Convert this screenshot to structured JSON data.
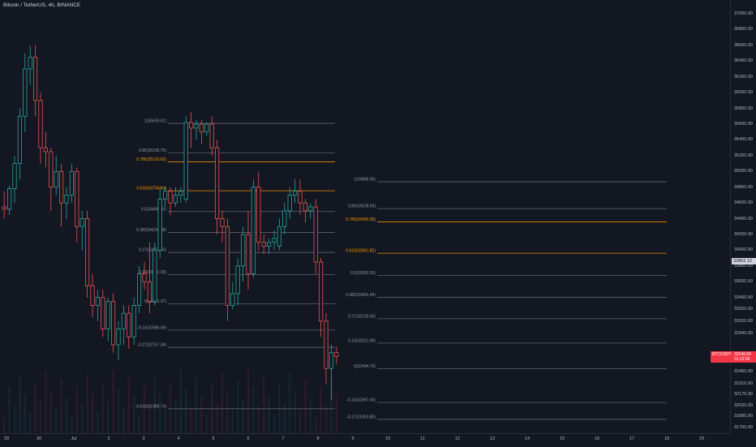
{
  "header": {
    "symbol_title": "Bitcoin / TetherUS, 4h, BINANCE"
  },
  "colors": {
    "background": "#131722",
    "bull": "#26a69a",
    "bear": "#ef5350",
    "fib_gray": "#787b86",
    "fib_orange": "#ff9800",
    "current_price_tag": "#f23645"
  },
  "price_axis": {
    "ticks": [
      {
        "label": "37000.00",
        "price": 37000
      },
      {
        "label": "36800.00",
        "price": 36800
      },
      {
        "label": "36600.00",
        "price": 36600
      },
      {
        "label": "36400.00",
        "price": 36400
      },
      {
        "label": "36200.00",
        "price": 36200
      },
      {
        "label": "36000.00",
        "price": 36000
      },
      {
        "label": "35800.00",
        "price": 35800
      },
      {
        "label": "35600.00",
        "price": 35600
      },
      {
        "label": "35400.00",
        "price": 35400
      },
      {
        "label": "35200.00",
        "price": 35200
      },
      {
        "label": "35000.00",
        "price": 35000
      },
      {
        "label": "34800.00",
        "price": 34800
      },
      {
        "label": "34600.00",
        "price": 34600
      },
      {
        "label": "34400.00",
        "price": 34400
      },
      {
        "label": "34200.00",
        "price": 34200
      },
      {
        "label": "34000.00",
        "price": 34000
      },
      {
        "label": "33800.00",
        "price": 33800
      },
      {
        "label": "33600.00",
        "price": 33600
      },
      {
        "label": "33400.00",
        "price": 33400
      },
      {
        "label": "33250.00",
        "price": 33250
      },
      {
        "label": "33100.00",
        "price": 33100
      },
      {
        "label": "32940.00",
        "price": 32940
      },
      {
        "label": "32460.00",
        "price": 32460
      },
      {
        "label": "32310.00",
        "price": 32310
      },
      {
        "label": "32170.00",
        "price": 32170
      },
      {
        "label": "32030.00",
        "price": 32030
      },
      {
        "label": "31890.00",
        "price": 31890
      },
      {
        "label": "31750.00",
        "price": 31750
      }
    ],
    "highlight_price": {
      "label": "33862.12",
      "price": 33862.12
    },
    "current_price": {
      "symbol": "BTCUSDT",
      "value": "32649.99",
      "countdown": "01:12:00",
      "price": 32649.99
    }
  },
  "time_axis": {
    "ticks": [
      "29",
      "30",
      "Jul",
      "2",
      "3",
      "4",
      "5",
      "6",
      "7",
      "8",
      "9",
      "10",
      "11",
      "12",
      "13",
      "14",
      "15",
      "16",
      "17",
      "18",
      "19"
    ]
  },
  "fib_left": {
    "levels": [
      {
        "label": "1(35609.61)",
        "price": 35609.61,
        "color": "gray"
      },
      {
        "label": "0.86(35236.75)",
        "price": 35236.75,
        "color": "gray"
      },
      {
        "label": "0.786(35120.62)",
        "price": 35120.62,
        "color": "orange"
      },
      {
        "label": "0.618(34754.60)",
        "price": 34754.6,
        "color": "orange"
      },
      {
        "label": "0.5(34490.45)",
        "price": 34490.45,
        "color": "gray"
      },
      {
        "label": "0.382(34226.38)",
        "price": 34226.38,
        "color": "gray"
      },
      {
        "label": "0.27(33971.40)",
        "price": 33971.4,
        "color": "gray"
      },
      {
        "label": "0.14(33691.35)",
        "price": 33691.35,
        "color": "gray"
      },
      {
        "label": "0(33321.37)",
        "price": 33321.37,
        "color": "gray"
      },
      {
        "label": "-0.14(32986.49)",
        "price": 32986.49,
        "color": "gray"
      },
      {
        "label": "-0.27(32767.34)",
        "price": 32767.34,
        "color": "gray"
      },
      {
        "label": "-0.618(31988.74)",
        "price": 31988.74,
        "color": "gray"
      }
    ]
  },
  "fib_right": {
    "levels": [
      {
        "label": "1(34868.35)",
        "price": 34868.35,
        "color": "gray"
      },
      {
        "label": "0.86(34528.04)",
        "price": 34528.04,
        "color": "gray"
      },
      {
        "label": "0.786(34360.39)",
        "price": 34360.39,
        "color": "orange"
      },
      {
        "label": "0.618(33961.82)",
        "price": 33961.82,
        "color": "orange"
      },
      {
        "label": "0.5(33681.53)",
        "price": 33681.53,
        "color": "gray"
      },
      {
        "label": "0.382(33401.44)",
        "price": 33401.44,
        "color": "gray"
      },
      {
        "label": "0.27(33130.56)",
        "price": 33130.56,
        "color": "gray"
      },
      {
        "label": "0.14(32821.96)",
        "price": 32821.96,
        "color": "gray"
      },
      {
        "label": "0(32494.70)",
        "price": 32494.7,
        "color": "gray"
      },
      {
        "label": "-0.14(32067.45)",
        "price": 32067.45,
        "color": "gray"
      },
      {
        "label": "-0.27(31853.80)",
        "price": 31853.8,
        "color": "gray"
      }
    ]
  },
  "candles": [
    {
      "o": 34550,
      "h": 34750,
      "c": 34520,
      "l": 34400
    },
    {
      "o": 34520,
      "h": 34820,
      "c": 34780,
      "l": 34450
    },
    {
      "o": 34780,
      "h": 35200,
      "c": 35100,
      "l": 34600
    },
    {
      "o": 35100,
      "h": 35800,
      "c": 35700,
      "l": 34900
    },
    {
      "o": 35700,
      "h": 36500,
      "c": 36300,
      "l": 35500
    },
    {
      "o": 36300,
      "h": 36600,
      "c": 36450,
      "l": 36100
    },
    {
      "o": 36450,
      "h": 36600,
      "c": 35900,
      "l": 35700
    },
    {
      "o": 35900,
      "h": 36000,
      "c": 35300,
      "l": 35100
    },
    {
      "o": 35300,
      "h": 35500,
      "c": 35250,
      "l": 35050
    },
    {
      "o": 35250,
      "h": 35300,
      "c": 34800,
      "l": 34500
    },
    {
      "o": 34800,
      "h": 35200,
      "c": 35000,
      "l": 34700
    },
    {
      "o": 35000,
      "h": 35100,
      "c": 34600,
      "l": 34300
    },
    {
      "o": 34600,
      "h": 34800,
      "c": 34700,
      "l": 34400
    },
    {
      "o": 34700,
      "h": 35100,
      "c": 35000,
      "l": 34600
    },
    {
      "o": 35000,
      "h": 35050,
      "c": 34300,
      "l": 34100
    },
    {
      "o": 34300,
      "h": 34500,
      "c": 34400,
      "l": 34000
    },
    {
      "o": 34400,
      "h": 34500,
      "c": 33550,
      "l": 33400
    },
    {
      "o": 33550,
      "h": 33700,
      "c": 33300,
      "l": 33150
    },
    {
      "o": 33300,
      "h": 33500,
      "c": 33400,
      "l": 33100
    },
    {
      "o": 33400,
      "h": 33500,
      "c": 33000,
      "l": 32900
    },
    {
      "o": 33000,
      "h": 33400,
      "c": 33350,
      "l": 32850
    },
    {
      "o": 33350,
      "h": 33450,
      "c": 32800,
      "l": 32700
    },
    {
      "o": 32800,
      "h": 33100,
      "c": 33000,
      "l": 32600
    },
    {
      "o": 33000,
      "h": 33300,
      "c": 33200,
      "l": 32800
    },
    {
      "o": 33200,
      "h": 33300,
      "c": 32900,
      "l": 32750
    },
    {
      "o": 32900,
      "h": 33400,
      "c": 33300,
      "l": 32800
    },
    {
      "o": 33300,
      "h": 33800,
      "c": 33700,
      "l": 33200
    },
    {
      "o": 33700,
      "h": 33850,
      "c": 33600,
      "l": 33500
    },
    {
      "o": 33600,
      "h": 34100,
      "c": 33350,
      "l": 33200
    },
    {
      "o": 33350,
      "h": 34100,
      "c": 34000,
      "l": 33300
    },
    {
      "o": 34000,
      "h": 34800,
      "c": 34650,
      "l": 33900
    },
    {
      "o": 34650,
      "h": 34800,
      "c": 34750,
      "l": 34550
    },
    {
      "o": 34750,
      "h": 34800,
      "c": 34600,
      "l": 34450
    },
    {
      "o": 34600,
      "h": 34800,
      "c": 34700,
      "l": 34550
    },
    {
      "o": 34700,
      "h": 34800,
      "c": 34750,
      "l": 34600
    },
    {
      "o": 34650,
      "h": 35700,
      "c": 35620,
      "l": 34600
    },
    {
      "o": 35620,
      "h": 35750,
      "c": 35550,
      "l": 35300
    },
    {
      "o": 35550,
      "h": 35650,
      "c": 35600,
      "l": 35400
    },
    {
      "o": 35600,
      "h": 35650,
      "c": 35500,
      "l": 35350
    },
    {
      "o": 35500,
      "h": 35620,
      "c": 35600,
      "l": 35450
    },
    {
      "o": 35600,
      "h": 35700,
      "c": 35300,
      "l": 35200
    },
    {
      "o": 35300,
      "h": 35400,
      "c": 34400,
      "l": 34200
    },
    {
      "o": 34400,
      "h": 34500,
      "c": 34300,
      "l": 34100
    },
    {
      "o": 34300,
      "h": 34400,
      "c": 33300,
      "l": 33100
    },
    {
      "o": 33300,
      "h": 33600,
      "c": 33450,
      "l": 33250
    },
    {
      "o": 33450,
      "h": 33900,
      "c": 33800,
      "l": 33300
    },
    {
      "o": 33800,
      "h": 34300,
      "c": 34200,
      "l": 33600
    },
    {
      "o": 34200,
      "h": 34500,
      "c": 33700,
      "l": 33500
    },
    {
      "o": 33700,
      "h": 34900,
      "c": 34800,
      "l": 33650
    },
    {
      "o": 34800,
      "h": 35000,
      "c": 34100,
      "l": 34000
    },
    {
      "o": 34100,
      "h": 34200,
      "c": 34050,
      "l": 33950
    },
    {
      "o": 34050,
      "h": 34150,
      "c": 34100,
      "l": 33950
    },
    {
      "o": 34100,
      "h": 34250,
      "c": 34150,
      "l": 34000
    },
    {
      "o": 34050,
      "h": 34400,
      "c": 34300,
      "l": 34000
    },
    {
      "o": 34300,
      "h": 34600,
      "c": 34500,
      "l": 34200
    },
    {
      "o": 34500,
      "h": 34800,
      "c": 34700,
      "l": 34400
    },
    {
      "o": 34700,
      "h": 34900,
      "c": 34750,
      "l": 34600
    },
    {
      "o": 34750,
      "h": 34900,
      "c": 34600,
      "l": 34450
    },
    {
      "o": 34600,
      "h": 34650,
      "c": 34500,
      "l": 34350
    },
    {
      "o": 34500,
      "h": 34600,
      "c": 34550,
      "l": 34400
    },
    {
      "o": 34550,
      "h": 34650,
      "c": 33850,
      "l": 33700
    },
    {
      "o": 33850,
      "h": 33900,
      "c": 33100,
      "l": 32900
    },
    {
      "o": 33100,
      "h": 33200,
      "c": 32500,
      "l": 32300
    },
    {
      "o": 32500,
      "h": 32800,
      "c": 32700,
      "l": 32100
    },
    {
      "o": 32700,
      "h": 32780,
      "c": 32650,
      "l": 32550
    }
  ]
}
